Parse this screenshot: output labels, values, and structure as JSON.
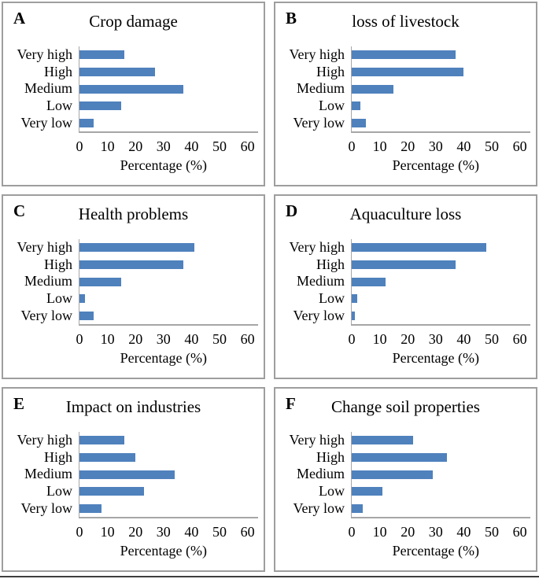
{
  "figure": {
    "xlabel": "Percentage (%)",
    "bar_color": "#4f81bd",
    "axis_color": "#a6a6a6",
    "panel_border_color": "#9e9e9e",
    "bottom_rule_color": "#3f3f3f"
  },
  "chart_data": [
    {
      "type": "bar",
      "orientation": "horizontal",
      "panel_letter": "A",
      "title": "Crop damage",
      "categories": [
        "Very high",
        "High",
        "Medium",
        "Low",
        "Very low"
      ],
      "values": [
        16,
        27,
        37,
        15,
        5
      ],
      "xlabel": "Percentage (%)",
      "xlim": [
        0,
        60
      ],
      "xticks": [
        0,
        10,
        20,
        30,
        40,
        50,
        60
      ],
      "grid": false,
      "legend": false
    },
    {
      "type": "bar",
      "orientation": "horizontal",
      "panel_letter": "B",
      "title": "loss of livestock",
      "categories": [
        "Very high",
        "High",
        "Medium",
        "Low",
        "Very low"
      ],
      "values": [
        37,
        40,
        15,
        3,
        5
      ],
      "xlabel": "Percentage (%)",
      "xlim": [
        0,
        60
      ],
      "xticks": [
        0,
        10,
        20,
        30,
        40,
        50,
        60
      ],
      "grid": false,
      "legend": false
    },
    {
      "type": "bar",
      "orientation": "horizontal",
      "panel_letter": "C",
      "title": "Health problems",
      "categories": [
        "Very high",
        "High",
        "Medium",
        "Low",
        "Very low"
      ],
      "values": [
        41,
        37,
        15,
        2,
        5
      ],
      "xlabel": "Percentage (%)",
      "xlim": [
        0,
        60
      ],
      "xticks": [
        0,
        10,
        20,
        30,
        40,
        50,
        60
      ],
      "grid": false,
      "legend": false
    },
    {
      "type": "bar",
      "orientation": "horizontal",
      "panel_letter": "D",
      "title": "Aquaculture loss",
      "categories": [
        "Very high",
        "High",
        "Medium",
        "Low",
        "Very low"
      ],
      "values": [
        48,
        37,
        12,
        2,
        1
      ],
      "xlabel": "Percentage (%)",
      "xlim": [
        0,
        60
      ],
      "xticks": [
        0,
        10,
        20,
        30,
        40,
        50,
        60
      ],
      "grid": false,
      "legend": false
    },
    {
      "type": "bar",
      "orientation": "horizontal",
      "panel_letter": "E",
      "title": "Impact on industries",
      "categories": [
        "Very high",
        "High",
        "Medium",
        "Low",
        "Very low"
      ],
      "values": [
        16,
        20,
        34,
        23,
        8
      ],
      "xlabel": "Percentage (%)",
      "xlim": [
        0,
        60
      ],
      "xticks": [
        0,
        10,
        20,
        30,
        40,
        50,
        60
      ],
      "grid": false,
      "legend": false
    },
    {
      "type": "bar",
      "orientation": "horizontal",
      "panel_letter": "F",
      "title": "Change soil properties",
      "categories": [
        "Very high",
        "High",
        "Medium",
        "Low",
        "Very low"
      ],
      "values": [
        22,
        34,
        29,
        11,
        4
      ],
      "xlabel": "Percentage (%)",
      "xlim": [
        0,
        60
      ],
      "xticks": [
        0,
        10,
        20,
        30,
        40,
        50,
        60
      ],
      "grid": false,
      "legend": false
    }
  ]
}
